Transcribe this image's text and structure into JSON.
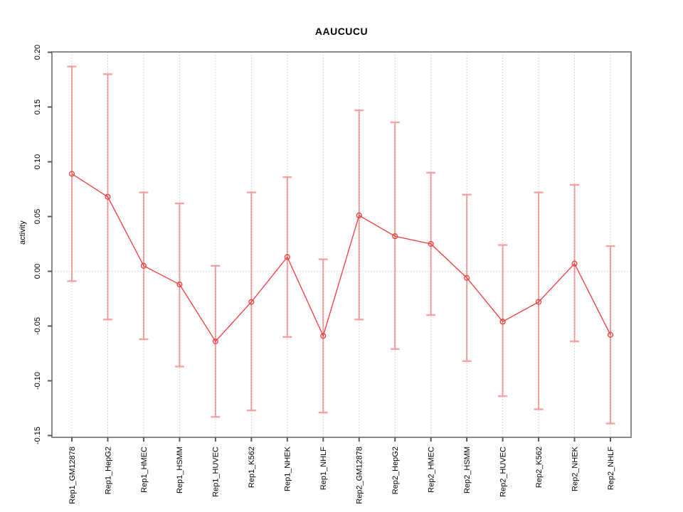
{
  "chart_data": {
    "type": "line",
    "title": "AAUCUCU",
    "ylabel": "activity",
    "xlabel": "",
    "legend": "none",
    "grid": "vertical dotted gridlines at each category; dotted horizontal line at y=0",
    "ylim": [
      -0.15,
      0.2
    ],
    "yticks": [
      0.2,
      0.15,
      0.1,
      0.05,
      0.0,
      -0.05,
      -0.1,
      -0.15
    ],
    "ytick_labels": [
      "0.20",
      "0.15",
      "0.10",
      "0.05",
      "0.00",
      "-0.05",
      "-0.10",
      "-0.15"
    ],
    "categories": [
      "Rep1_GM12878",
      "Rep1_HepG2",
      "Rep1_HMEC",
      "Rep1_HSMM",
      "Rep1_HUVEC",
      "Rep1_K562",
      "Rep1_NHEK",
      "Rep1_NHLF",
      "Rep2_GM12878",
      "Rep2_HepG2",
      "Rep2_HMEC",
      "Rep2_HSMM",
      "Rep2_HUVEC",
      "Rep2_K562",
      "Rep2_NHEK",
      "Rep2_NHLF"
    ],
    "series": [
      {
        "name": "activity",
        "values": [
          0.089,
          0.068,
          0.005,
          -0.012,
          -0.064,
          -0.028,
          0.013,
          -0.059,
          0.051,
          0.032,
          0.025,
          -0.006,
          -0.046,
          -0.028,
          0.007,
          -0.058
        ],
        "error_lower": [
          -0.009,
          -0.044,
          -0.062,
          -0.087,
          -0.133,
          -0.127,
          -0.06,
          -0.129,
          -0.044,
          -0.071,
          -0.04,
          -0.082,
          -0.114,
          -0.126,
          -0.064,
          -0.139
        ],
        "error_upper": [
          0.187,
          0.18,
          0.072,
          0.062,
          0.005,
          0.072,
          0.086,
          0.011,
          0.147,
          0.136,
          0.09,
          0.07,
          0.024,
          0.072,
          0.079,
          0.023
        ]
      }
    ],
    "colors": {
      "point_line": "#ee3b3b",
      "error_bar": "#f8a2a2",
      "gridline": "#c9c9c9",
      "zero_line": "#dcdcdc",
      "axis_box": "#8a8a8a",
      "tick": "#595959",
      "label_text": "#000000"
    }
  }
}
